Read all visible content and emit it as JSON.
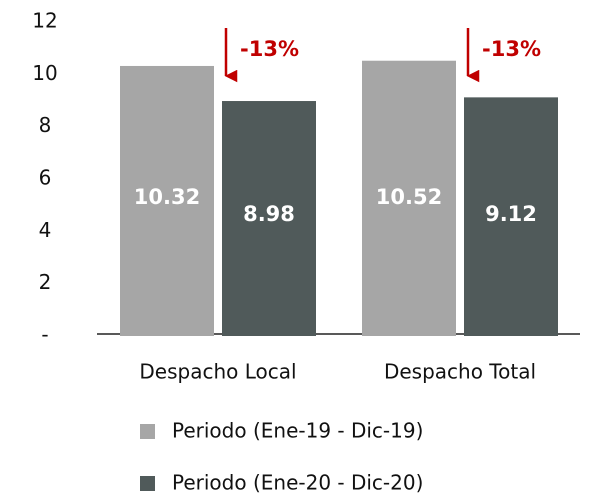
{
  "chart_data": {
    "type": "bar",
    "categories": [
      "Despacho Local",
      "Despacho Total"
    ],
    "series": [
      {
        "name": "Periodo (Ene-19 - Dic-19)",
        "color": "#a6a6a6",
        "values": [
          10.32,
          10.52
        ]
      },
      {
        "name": "Periodo (Ene-20 - Dic-20)",
        "color": "#505a5a",
        "values": [
          8.98,
          9.12
        ]
      }
    ],
    "annotations": [
      "-13%",
      "-13%"
    ],
    "ylim": [
      0,
      12
    ],
    "yticks": [
      {
        "value": 0,
        "label": "-"
      },
      2,
      4,
      6,
      8,
      10,
      12
    ],
    "legend": "bottom"
  }
}
